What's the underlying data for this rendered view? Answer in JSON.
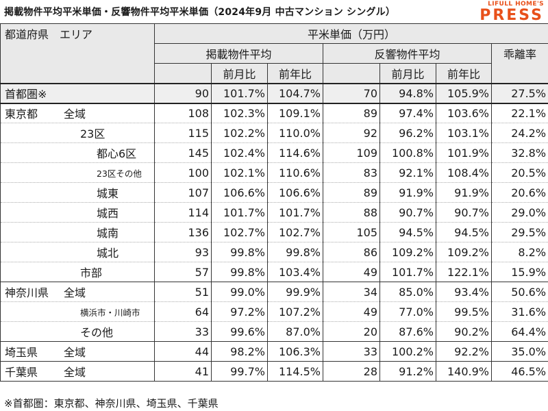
{
  "title": "掲載物件平均平米単価・反響物件平均平米単価（2024年9月 中古マンション シングル）",
  "logo": {
    "top": "LIFULL HOME'S",
    "main": "PRESS"
  },
  "header": {
    "region": "都道府県　エリア",
    "unit": "平米単価（万円）",
    "listing_avg": "掲載物件平均",
    "response_avg": "反響物件平均",
    "mom": "前月比",
    "yoy": "前年比",
    "divergence": "乖離率"
  },
  "rows": [
    {
      "pref": "首都圏※",
      "area": "",
      "indent": 0,
      "listing": "90",
      "l_mom": "101.7%",
      "l_yoy": "104.7%",
      "response": "70",
      "r_mom": "94.8%",
      "r_yoy": "105.9%",
      "div": "27.5%"
    },
    {
      "pref": "東京都",
      "area": "全域",
      "indent": 0,
      "listing": "108",
      "l_mom": "102.3%",
      "l_yoy": "109.1%",
      "response": "89",
      "r_mom": "97.4%",
      "r_yoy": "103.6%",
      "div": "22.1%"
    },
    {
      "pref": "",
      "area": "23区",
      "indent": 1,
      "listing": "115",
      "l_mom": "102.2%",
      "l_yoy": "110.0%",
      "response": "92",
      "r_mom": "96.2%",
      "r_yoy": "103.1%",
      "div": "24.2%"
    },
    {
      "pref": "",
      "area": "都心6区",
      "indent": 2,
      "listing": "145",
      "l_mom": "102.4%",
      "l_yoy": "114.6%",
      "response": "109",
      "r_mom": "100.8%",
      "r_yoy": "101.9%",
      "div": "32.8%"
    },
    {
      "pref": "",
      "area": "23区その他",
      "indent": 2,
      "small": true,
      "listing": "100",
      "l_mom": "102.1%",
      "l_yoy": "110.6%",
      "response": "83",
      "r_mom": "92.1%",
      "r_yoy": "108.4%",
      "div": "20.5%"
    },
    {
      "pref": "",
      "area": "城東",
      "indent": 2,
      "listing": "107",
      "l_mom": "106.6%",
      "l_yoy": "106.6%",
      "response": "89",
      "r_mom": "91.9%",
      "r_yoy": "91.9%",
      "div": "20.6%"
    },
    {
      "pref": "",
      "area": "城西",
      "indent": 2,
      "listing": "114",
      "l_mom": "101.7%",
      "l_yoy": "101.7%",
      "response": "88",
      "r_mom": "90.7%",
      "r_yoy": "90.7%",
      "div": "29.0%"
    },
    {
      "pref": "",
      "area": "城南",
      "indent": 2,
      "listing": "136",
      "l_mom": "102.7%",
      "l_yoy": "102.7%",
      "response": "105",
      "r_mom": "94.5%",
      "r_yoy": "94.5%",
      "div": "29.5%"
    },
    {
      "pref": "",
      "area": "城北",
      "indent": 2,
      "listing": "93",
      "l_mom": "99.8%",
      "l_yoy": "99.8%",
      "response": "86",
      "r_mom": "109.2%",
      "r_yoy": "109.2%",
      "div": "8.2%"
    },
    {
      "pref": "",
      "area": "市部",
      "indent": 1,
      "listing": "57",
      "l_mom": "99.8%",
      "l_yoy": "103.4%",
      "response": "49",
      "r_mom": "101.7%",
      "r_yoy": "122.1%",
      "div": "15.9%"
    },
    {
      "pref": "神奈川県",
      "area": "全域",
      "indent": 0,
      "listing": "51",
      "l_mom": "99.0%",
      "l_yoy": "99.9%",
      "response": "34",
      "r_mom": "85.0%",
      "r_yoy": "93.4%",
      "div": "50.6%"
    },
    {
      "pref": "",
      "area": "横浜市・川崎市",
      "indent": 1,
      "small": true,
      "listing": "64",
      "l_mom": "97.2%",
      "l_yoy": "107.2%",
      "response": "49",
      "r_mom": "77.0%",
      "r_yoy": "99.5%",
      "div": "31.6%"
    },
    {
      "pref": "",
      "area": "その他",
      "indent": 1,
      "listing": "33",
      "l_mom": "99.6%",
      "l_yoy": "87.0%",
      "response": "20",
      "r_mom": "87.6%",
      "r_yoy": "90.2%",
      "div": "64.4%"
    },
    {
      "pref": "埼玉県",
      "area": "全域",
      "indent": 0,
      "listing": "44",
      "l_mom": "98.2%",
      "l_yoy": "106.3%",
      "response": "33",
      "r_mom": "100.2%",
      "r_yoy": "92.2%",
      "div": "35.0%"
    },
    {
      "pref": "千葉県",
      "area": "全域",
      "indent": 0,
      "listing": "41",
      "l_mom": "99.7%",
      "l_yoy": "114.5%",
      "response": "28",
      "r_mom": "91.2%",
      "r_yoy": "140.9%",
      "div": "46.5%"
    }
  ],
  "footnote": "※首都圏：東京都、神奈川県、埼玉県、千葉県"
}
